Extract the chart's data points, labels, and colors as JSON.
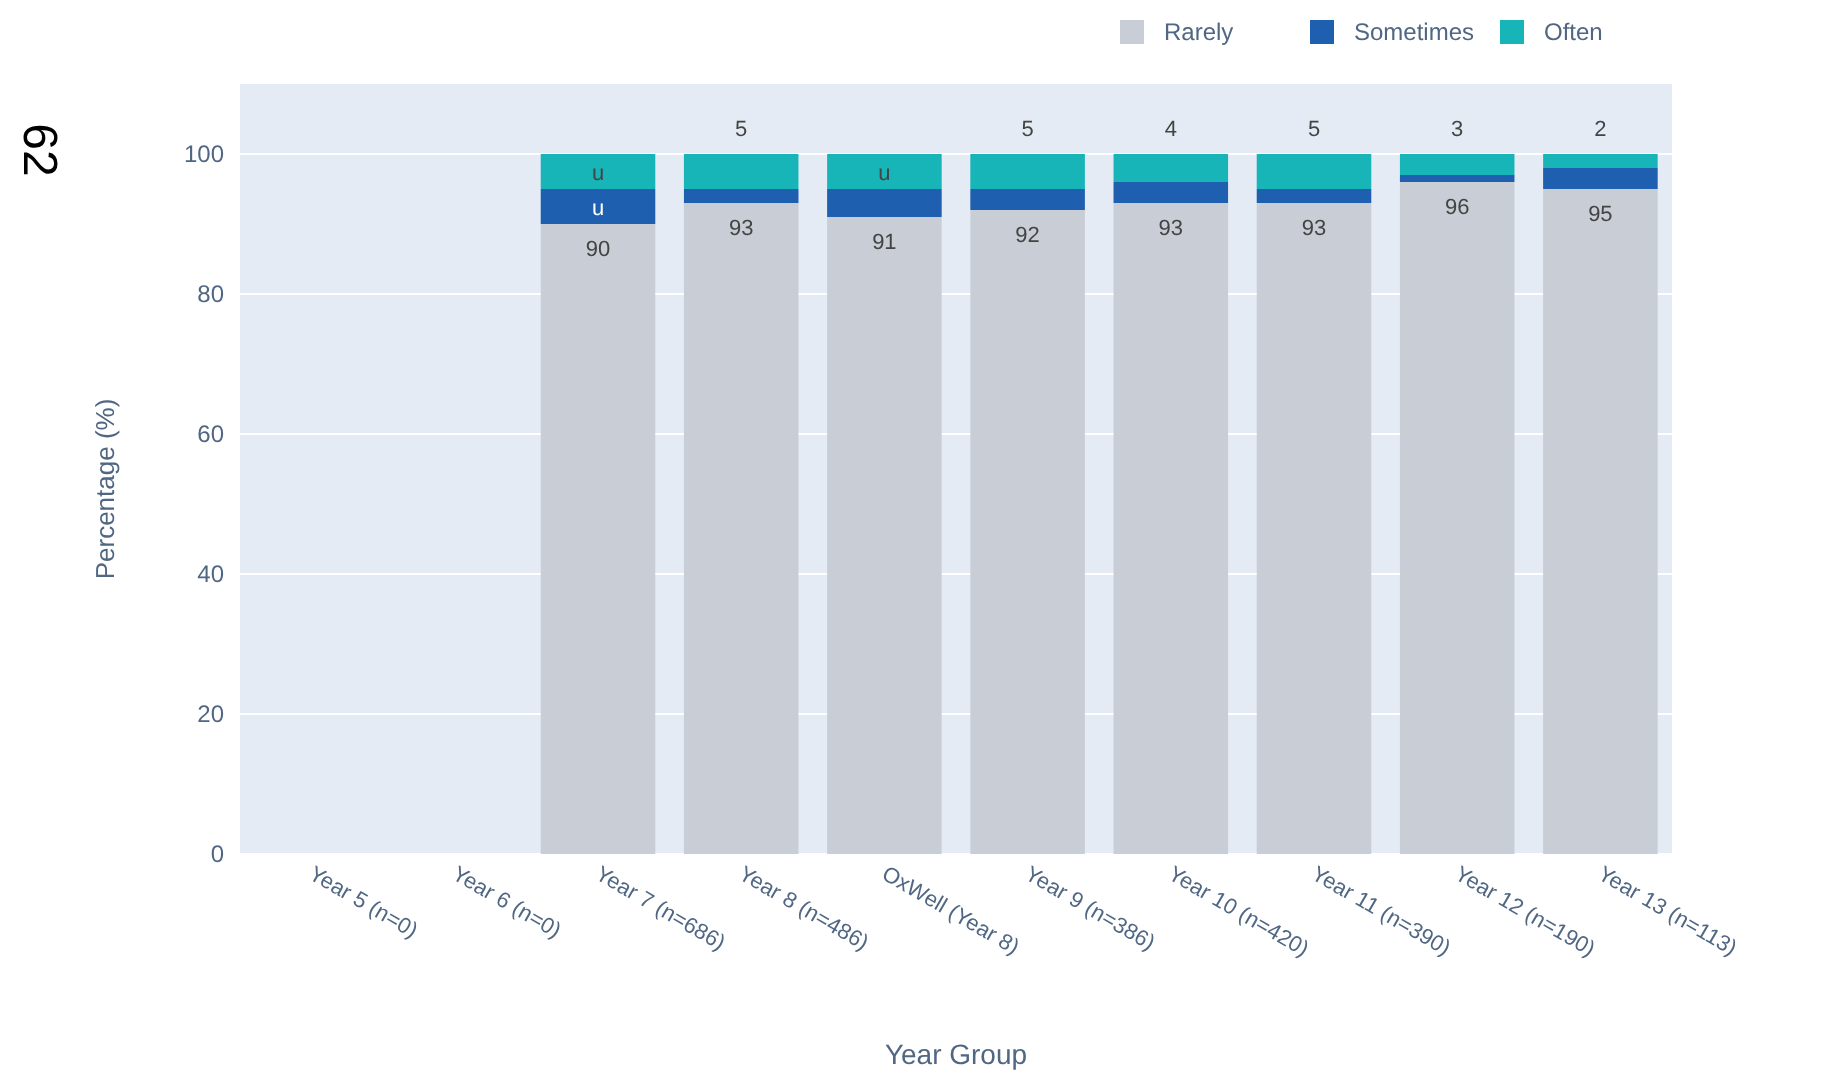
{
  "chart_data": {
    "type": "bar",
    "stacked": true,
    "xlabel": "Year Group",
    "ylabel": "Percentage (%)",
    "categories": [
      "Year 5 (n=0)",
      "Year 6 (n=0)",
      "Year 7 (n=686)",
      "Year 8 (n=486)",
      "OxWell (Year 8)",
      "Year 9 (n=386)",
      "Year 10 (n=420)",
      "Year 11 (n=390)",
      "Year 12 (n=190)",
      "Year 13 (n=113)"
    ],
    "series": [
      {
        "name": "Rarely",
        "color": "#c9ced6",
        "values": [
          null,
          null,
          90,
          93,
          91,
          92,
          93,
          93,
          96,
          95
        ],
        "value_labels": [
          null,
          null,
          "90",
          "93",
          "91",
          "92",
          "93",
          "93",
          "96",
          "95"
        ]
      },
      {
        "name": "Sometimes",
        "color": "#1f5fb0",
        "values": [
          null,
          null,
          5,
          2,
          4,
          3,
          3,
          2,
          1,
          3
        ],
        "value_labels": [
          null,
          null,
          "u",
          null,
          null,
          null,
          null,
          null,
          null,
          null
        ]
      },
      {
        "name": "Often",
        "color": "#17b5b8",
        "values": [
          null,
          null,
          5,
          5,
          5,
          5,
          4,
          5,
          3,
          2
        ],
        "value_labels": [
          null,
          null,
          "u",
          "5",
          "u",
          "5",
          "4",
          "5",
          "3",
          "2"
        ]
      }
    ],
    "ylim": [
      0,
      110
    ],
    "yticks": [
      0,
      20,
      40,
      60,
      80,
      100
    ],
    "grid": "y",
    "legend": "top right",
    "annotations": [
      "62"
    ]
  }
}
